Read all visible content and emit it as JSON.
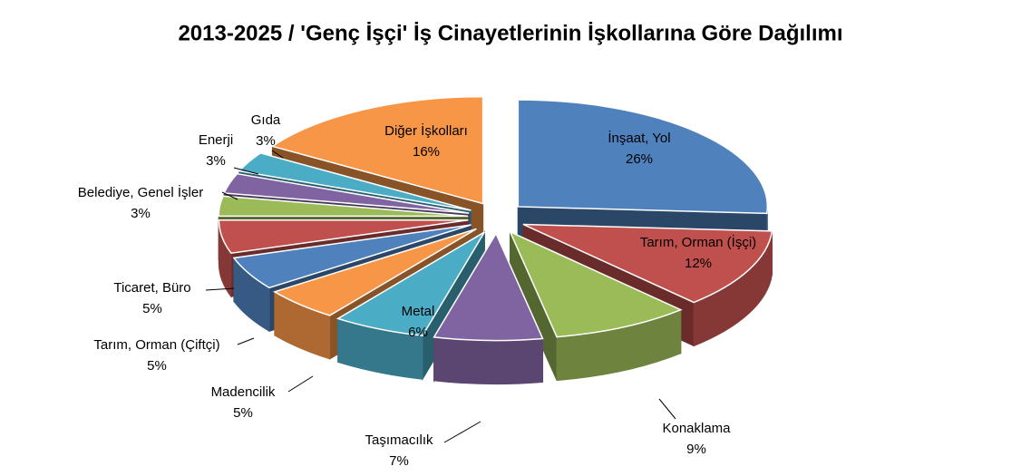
{
  "chart_data": {
    "type": "pie",
    "title": "2013-2025 / 'Genç İşçi' İş Cinayetlerinin İşkollarına Göre Dağılımı",
    "categories": [
      "İnşaat, Yol",
      "Tarım, Orman (İşçi)",
      "Konaklama",
      "Taşımacılık",
      "Metal",
      "Madencilik",
      "Tarım, Orman (Çiftçi)",
      "Ticaret, Büro",
      "Belediye, Genel İşler",
      "Enerji",
      "Gıda",
      "Diğer İşkolları"
    ],
    "values": [
      26,
      12,
      9,
      7,
      6,
      5,
      5,
      5,
      3,
      3,
      3,
      16
    ],
    "value_labels": [
      "26%",
      "12%",
      "9%",
      "7%",
      "6%",
      "5%",
      "5%",
      "5%",
      "3%",
      "3%",
      "3%",
      "16%"
    ],
    "colors": [
      "#4f81bd",
      "#c0504d",
      "#9bbb59",
      "#8064a2",
      "#4bacc6",
      "#f79646",
      "#4f81bd",
      "#c0504d",
      "#9bbb59",
      "#8064a2",
      "#4bacc6",
      "#f79646"
    ]
  }
}
